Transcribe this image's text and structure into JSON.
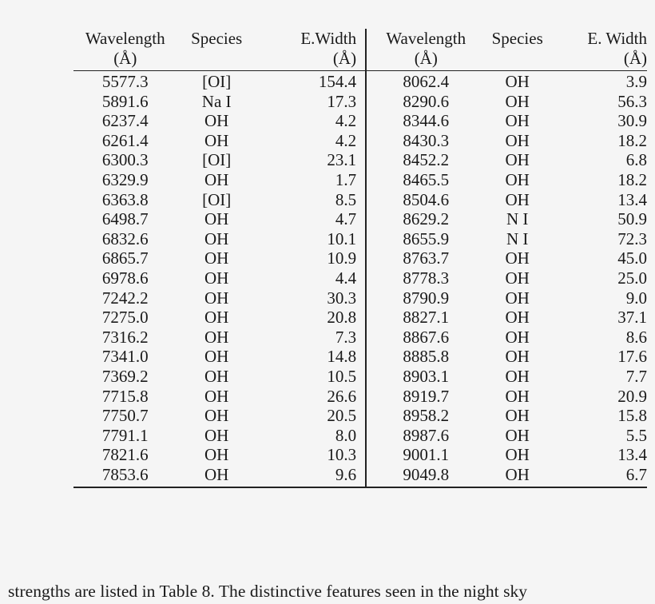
{
  "table": {
    "left_block": {
      "headers": [
        {
          "label": "Wavelength",
          "unit": "(Å)"
        },
        {
          "label": "Species",
          "unit": ""
        },
        {
          "label": "E.Width",
          "unit": "(Å)"
        }
      ],
      "rows": [
        [
          "5577.3",
          "[OI]",
          "154.4"
        ],
        [
          "5891.6",
          "Na I",
          "17.3"
        ],
        [
          "6237.4",
          "OH",
          "4.2"
        ],
        [
          "6261.4",
          "OH",
          "4.2"
        ],
        [
          "6300.3",
          "[OI]",
          "23.1"
        ],
        [
          "6329.9",
          "OH",
          "1.7"
        ],
        [
          "6363.8",
          "[OI]",
          "8.5"
        ],
        [
          "6498.7",
          "OH",
          "4.7"
        ],
        [
          "6832.6",
          "OH",
          "10.1"
        ],
        [
          "6865.7",
          "OH",
          "10.9"
        ],
        [
          "6978.6",
          "OH",
          "4.4"
        ],
        [
          "7242.2",
          "OH",
          "30.3"
        ],
        [
          "7275.0",
          "OH",
          "20.8"
        ],
        [
          "7316.2",
          "OH",
          "7.3"
        ],
        [
          "7341.0",
          "OH",
          "14.8"
        ],
        [
          "7369.2",
          "OH",
          "10.5"
        ],
        [
          "7715.8",
          "OH",
          "26.6"
        ],
        [
          "7750.7",
          "OH",
          "20.5"
        ],
        [
          "7791.1",
          "OH",
          "8.0"
        ],
        [
          "7821.6",
          "OH",
          "10.3"
        ],
        [
          "7853.6",
          "OH",
          "9.6"
        ]
      ]
    },
    "right_block": {
      "headers": [
        {
          "label": "Wavelength",
          "unit": "(Å)"
        },
        {
          "label": "Species",
          "unit": ""
        },
        {
          "label": "E. Width",
          "unit": "(Å)"
        }
      ],
      "rows": [
        [
          "8062.4",
          "OH",
          "3.9"
        ],
        [
          "8290.6",
          "OH",
          "56.3"
        ],
        [
          "8344.6",
          "OH",
          "30.9"
        ],
        [
          "8430.3",
          "OH",
          "18.2"
        ],
        [
          "8452.2",
          "OH",
          "6.8"
        ],
        [
          "8465.5",
          "OH",
          "18.2"
        ],
        [
          "8504.6",
          "OH",
          "13.4"
        ],
        [
          "8629.2",
          "N I",
          "50.9"
        ],
        [
          "8655.9",
          "N I",
          "72.3"
        ],
        [
          "8763.7",
          "OH",
          "45.0"
        ],
        [
          "8778.3",
          "OH",
          "25.0"
        ],
        [
          "8790.9",
          "OH",
          "9.0"
        ],
        [
          "8827.1",
          "OH",
          "37.1"
        ],
        [
          "8867.6",
          "OH",
          "8.6"
        ],
        [
          "8885.8",
          "OH",
          "17.6"
        ],
        [
          "8903.1",
          "OH",
          "7.7"
        ],
        [
          "8919.7",
          "OH",
          "20.9"
        ],
        [
          "8958.2",
          "OH",
          "15.8"
        ],
        [
          "8987.6",
          "OH",
          "5.5"
        ],
        [
          "9001.1",
          "OH",
          "13.4"
        ],
        [
          "9049.8",
          "OH",
          "6.7"
        ]
      ]
    }
  },
  "body_text": "strengths are listed in Table 8.  The distinctive features seen in the night sky"
}
